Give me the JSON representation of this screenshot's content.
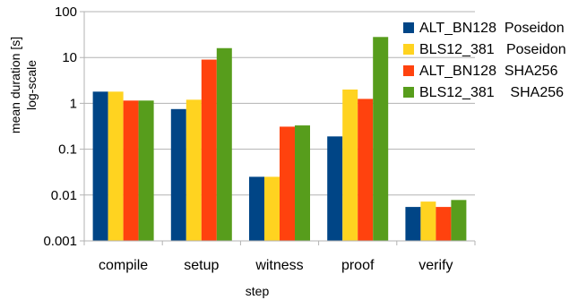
{
  "chart_data": {
    "type": "bar",
    "categories": [
      "compile",
      "setup",
      "witness",
      "proof",
      "verify"
    ],
    "xlabel": "step",
    "ylabel": [
      "mean duration [s]",
      "log-scale"
    ],
    "yscale": "log",
    "ylim": [
      0.001,
      100
    ],
    "yticks": [
      "100",
      "10",
      "1",
      "0.1",
      "0.01",
      "0.001"
    ],
    "grid": "horizontal",
    "legend_position": "right",
    "series": [
      {
        "name": "ALT_BN128  Poseidon",
        "color": "#004586",
        "values": [
          1.8,
          0.75,
          0.025,
          0.19,
          0.0055
        ]
      },
      {
        "name": "BLS12_381   Poseidon",
        "color": "#ffd320",
        "values": [
          1.8,
          1.2,
          0.025,
          2.0,
          0.0072
        ]
      },
      {
        "name": "ALT_BN128  SHA256",
        "color": "#ff420e",
        "values": [
          1.15,
          9.0,
          0.31,
          1.25,
          0.0055
        ]
      },
      {
        "name": "BLS12_381    SHA256",
        "color": "#579d1c",
        "values": [
          1.15,
          16.0,
          0.33,
          28.0,
          0.0078
        ]
      }
    ]
  }
}
